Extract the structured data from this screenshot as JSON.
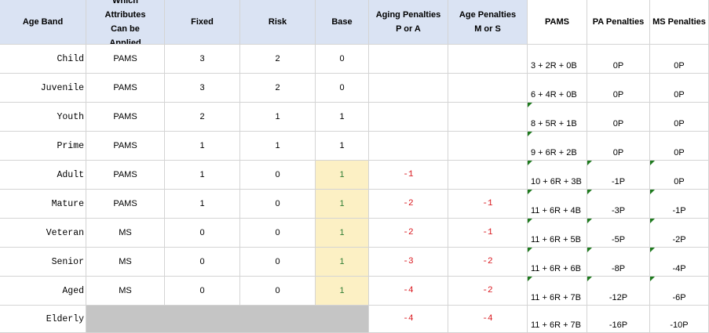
{
  "headers": {
    "age_band": "Age Band",
    "which_attributes": "Which Attributes Can be Applied",
    "fixed": "Fixed",
    "risk": "Risk",
    "base": "Base",
    "aging_penalties": "Aging Penalties P or A",
    "age_penalties": "Age Penalties M or S",
    "pams": "PAMS",
    "pa_penalties": "PA Penalties",
    "ms_penalties": "MS Penalties"
  },
  "rows": [
    {
      "band": "Child",
      "attr": "PAMS",
      "fixed": "3",
      "risk": "2",
      "base": "0",
      "aging": "",
      "age": "",
      "pams": "3 + 2R + 0B",
      "pa": "0P",
      "ms": "0P"
    },
    {
      "band": "Juvenile",
      "attr": "PAMS",
      "fixed": "3",
      "risk": "2",
      "base": "0",
      "aging": "",
      "age": "",
      "pams": "6 + 4R + 0B",
      "pa": "0P",
      "ms": "0P"
    },
    {
      "band": "Youth",
      "attr": "PAMS",
      "fixed": "2",
      "risk": "1",
      "base": "1",
      "aging": "",
      "age": "",
      "pams": "8 + 5R + 1B",
      "pa": "0P",
      "ms": "0P"
    },
    {
      "band": "Prime",
      "attr": "PAMS",
      "fixed": "1",
      "risk": "1",
      "base": "1",
      "aging": "",
      "age": "",
      "pams": "9 + 6R + 2B",
      "pa": "0P",
      "ms": "0P"
    },
    {
      "band": "Adult",
      "attr": "PAMS",
      "fixed": "1",
      "risk": "0",
      "base": "1",
      "aging": "-1",
      "age": "",
      "pams": "10 + 6R + 3B",
      "pa": "-1P",
      "ms": "0P"
    },
    {
      "band": "Mature",
      "attr": "PAMS",
      "fixed": "1",
      "risk": "0",
      "base": "1",
      "aging": "-2",
      "age": "-1",
      "pams": "11 + 6R + 4B",
      "pa": "-3P",
      "ms": "-1P"
    },
    {
      "band": "Veteran",
      "attr": "MS",
      "fixed": "0",
      "risk": "0",
      "base": "1",
      "aging": "-2",
      "age": "-1",
      "pams": "11 + 6R + 5B",
      "pa": "-5P",
      "ms": "-2P"
    },
    {
      "band": "Senior",
      "attr": "MS",
      "fixed": "0",
      "risk": "0",
      "base": "1",
      "aging": "-3",
      "age": "-2",
      "pams": "11 + 6R + 6B",
      "pa": "-8P",
      "ms": "-4P"
    },
    {
      "band": "Aged",
      "attr": "MS",
      "fixed": "0",
      "risk": "0",
      "base": "1",
      "aging": "-4",
      "age": "-2",
      "pams": "11 + 6R + 7B",
      "pa": "-12P",
      "ms": "-6P"
    },
    {
      "band": "Elderly",
      "attr": "",
      "fixed": "",
      "risk": "",
      "base": "",
      "aging": "-4",
      "age": "-4",
      "pams": "11 + 6R + 7B",
      "pa": "-16P",
      "ms": "-10P"
    }
  ],
  "colors": {
    "header_fill": "#dae3f3",
    "base_highlight": "#fcf0c4",
    "base_text": "#2e7d32",
    "penalty_text": "#d9141b",
    "elderly_fill": "#c5c5c5",
    "comment_marker": "#1e7a1e"
  }
}
